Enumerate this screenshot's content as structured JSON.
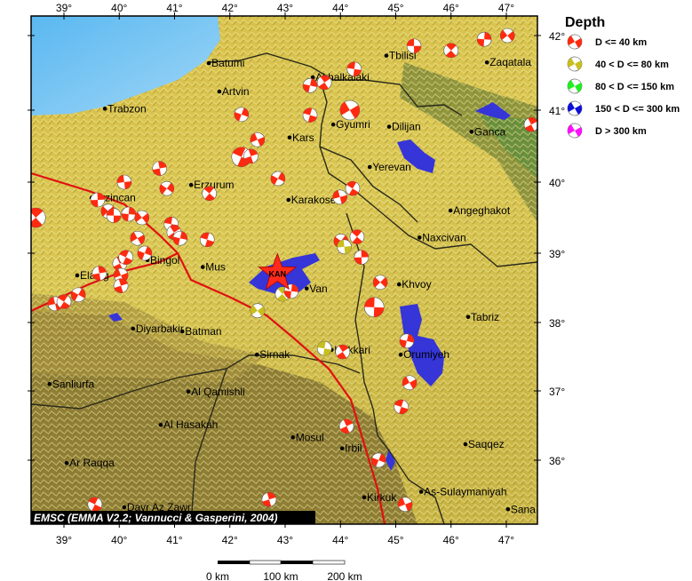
{
  "map": {
    "credit": "EMSC (EMMA V2.2; Vannucci & Gasperini, 2004)",
    "lon_ticks": [
      "39°",
      "40°",
      "41°",
      "42°",
      "43°",
      "44°",
      "45°",
      "46°",
      "47°"
    ],
    "lat_ticks": [
      "42°",
      "41°",
      "40°",
      "39°",
      "38°",
      "37°",
      "36°"
    ],
    "extent": {
      "lon": [
        38.4,
        47.5
      ],
      "lat": [
        35.1,
        42.3
      ]
    },
    "epicenter": {
      "label": "KAN",
      "lon": 42.86,
      "lat": 38.71,
      "color": "#ff2a1a"
    },
    "cities": [
      {
        "name": "Batumi",
        "lon": 41.62,
        "lat": 41.63
      },
      {
        "name": "Artvin",
        "lon": 41.81,
        "lat": 41.25
      },
      {
        "name": "Trabzon",
        "lon": 39.74,
        "lat": 41.02
      },
      {
        "name": "Tbilisi",
        "lon": 44.83,
        "lat": 41.73
      },
      {
        "name": "Zaqatala",
        "lon": 46.65,
        "lat": 41.64
      },
      {
        "name": "Akhalkalaki",
        "lon": 43.5,
        "lat": 41.44
      },
      {
        "name": "Gyumri",
        "lon": 43.87,
        "lat": 40.8
      },
      {
        "name": "Dilijan",
        "lon": 44.88,
        "lat": 40.77
      },
      {
        "name": "Ganca",
        "lon": 46.37,
        "lat": 40.7
      },
      {
        "name": "Kars",
        "lon": 43.08,
        "lat": 40.62
      },
      {
        "name": "Yerevan",
        "lon": 44.53,
        "lat": 40.21
      },
      {
        "name": "Erzurum",
        "lon": 41.3,
        "lat": 39.96
      },
      {
        "name": "Karakose",
        "lon": 43.06,
        "lat": 39.75
      },
      {
        "name": "Angeghakot",
        "lon": 45.99,
        "lat": 39.6
      },
      {
        "name": "Erzincan",
        "lon": 39.5,
        "lat": 39.78
      },
      {
        "name": "Naxcivan",
        "lon": 45.43,
        "lat": 39.22
      },
      {
        "name": "Bingol",
        "lon": 40.51,
        "lat": 38.9
      },
      {
        "name": "Elazig",
        "lon": 39.24,
        "lat": 38.68
      },
      {
        "name": "Mus",
        "lon": 41.51,
        "lat": 38.8
      },
      {
        "name": "Van",
        "lon": 43.39,
        "lat": 38.49
      },
      {
        "name": "Khvoy",
        "lon": 45.06,
        "lat": 38.55
      },
      {
        "name": "Tabriz",
        "lon": 46.31,
        "lat": 38.08
      },
      {
        "name": "Diyarbakir",
        "lon": 40.25,
        "lat": 37.91
      },
      {
        "name": "Batman",
        "lon": 41.14,
        "lat": 37.87
      },
      {
        "name": "Sirnak",
        "lon": 42.49,
        "lat": 37.53
      },
      {
        "name": "Hakkari",
        "lon": 43.84,
        "lat": 37.6
      },
      {
        "name": "Orumiyeh",
        "lon": 45.09,
        "lat": 37.53
      },
      {
        "name": "Sanliurfa",
        "lon": 38.74,
        "lat": 37.1
      },
      {
        "name": "Al Qamishli",
        "lon": 41.25,
        "lat": 36.99
      },
      {
        "name": "Al Hasakah",
        "lon": 40.75,
        "lat": 36.51
      },
      {
        "name": "Mosul",
        "lon": 43.14,
        "lat": 36.33
      },
      {
        "name": "Irbil",
        "lon": 44.03,
        "lat": 36.17
      },
      {
        "name": "Saqqez",
        "lon": 46.26,
        "lat": 36.23
      },
      {
        "name": "Ar Raqqa",
        "lon": 39.05,
        "lat": 35.96
      },
      {
        "name": "Kirkuk",
        "lon": 44.43,
        "lat": 35.47
      },
      {
        "name": "As-Sulaymaniyah",
        "lon": 45.46,
        "lat": 35.55
      },
      {
        "name": "Dayr Az Zawr",
        "lon": 40.09,
        "lat": 35.33
      },
      {
        "name": "Sana",
        "lon": 47.03,
        "lat": 35.3
      }
    ],
    "mechanisms": [
      [
        45.33,
        41.86,
        "d40"
      ],
      [
        46.0,
        41.8,
        "d40"
      ],
      [
        46.6,
        41.95,
        "d40"
      ],
      [
        47.02,
        42.0,
        "d40"
      ],
      [
        44.25,
        41.55,
        "d40"
      ],
      [
        43.71,
        41.37,
        "d40"
      ],
      [
        43.45,
        41.33,
        "d40"
      ],
      [
        44.17,
        41.0,
        "d40"
      ],
      [
        43.45,
        40.93,
        "d40"
      ],
      [
        47.45,
        40.8,
        "d40"
      ],
      [
        42.21,
        40.94,
        "d40"
      ],
      [
        42.5,
        40.59,
        "d40"
      ],
      [
        42.21,
        40.35,
        "d40"
      ],
      [
        42.38,
        40.36,
        "d40"
      ],
      [
        42.87,
        40.05,
        "d40"
      ],
      [
        43.99,
        39.79,
        "d40"
      ],
      [
        44.22,
        39.91,
        "d40"
      ],
      [
        40.73,
        40.19,
        "d40"
      ],
      [
        40.86,
        39.91,
        "d40"
      ],
      [
        40.09,
        40.0,
        "d40"
      ],
      [
        41.63,
        39.84,
        "d40"
      ],
      [
        39.61,
        39.75,
        "d40"
      ],
      [
        39.8,
        39.59,
        "d40"
      ],
      [
        39.9,
        39.53,
        "d40"
      ],
      [
        38.49,
        39.5,
        "d40"
      ],
      [
        40.17,
        39.55,
        "d40"
      ],
      [
        40.41,
        39.5,
        "d40"
      ],
      [
        40.94,
        39.41,
        "d40"
      ],
      [
        40.99,
        39.29,
        "d40"
      ],
      [
        41.1,
        39.21,
        "d40"
      ],
      [
        40.33,
        39.21,
        "d40"
      ],
      [
        41.59,
        39.19,
        "d40"
      ],
      [
        40.01,
        38.85,
        "d40"
      ],
      [
        40.46,
        39.0,
        "d40"
      ],
      [
        40.03,
        38.68,
        "d40"
      ],
      [
        40.12,
        38.94,
        "d40"
      ],
      [
        40.03,
        38.53,
        "d40"
      ],
      [
        39.26,
        38.4,
        "d40"
      ],
      [
        38.84,
        38.27,
        "d40"
      ],
      [
        39.0,
        38.3,
        "d40"
      ],
      [
        39.64,
        38.71,
        "d40"
      ],
      [
        44.01,
        39.17,
        "d40"
      ],
      [
        44.07,
        39.09,
        "d80"
      ],
      [
        44.3,
        39.23,
        "d40"
      ],
      [
        44.38,
        38.94,
        "d40"
      ],
      [
        44.72,
        38.58,
        "d40"
      ],
      [
        44.61,
        38.22,
        "d40"
      ],
      [
        42.95,
        38.41,
        "d80"
      ],
      [
        43.11,
        38.45,
        "d40"
      ],
      [
        42.5,
        38.17,
        "d80"
      ],
      [
        43.71,
        37.62,
        "d80"
      ],
      [
        44.04,
        37.57,
        "d40"
      ],
      [
        45.2,
        37.73,
        "d40"
      ],
      [
        45.25,
        37.12,
        "d40"
      ],
      [
        45.1,
        36.77,
        "d40"
      ],
      [
        44.11,
        36.49,
        "d40"
      ],
      [
        44.69,
        36.0,
        "d40"
      ],
      [
        45.17,
        35.37,
        "d40"
      ],
      [
        39.56,
        35.37,
        "d40"
      ],
      [
        42.71,
        35.44,
        "d40"
      ]
    ]
  },
  "legend": {
    "title": "Depth",
    "items": [
      {
        "key": "d40",
        "label": "D <= 40 km",
        "color": "#ff2a10"
      },
      {
        "key": "d80",
        "label": "40 < D <= 80 km",
        "color": "#c8be1e"
      },
      {
        "key": "d150",
        "label": "80 < D <= 150 km",
        "color": "#22ee22"
      },
      {
        "key": "d300",
        "label": "150 < D <= 300 km",
        "color": "#1010d8"
      },
      {
        "key": "d999",
        "label": "D > 300 km",
        "color": "#ff10ff"
      }
    ]
  },
  "scale": {
    "labels": [
      "0 km",
      "100 km",
      "200 km"
    ]
  }
}
